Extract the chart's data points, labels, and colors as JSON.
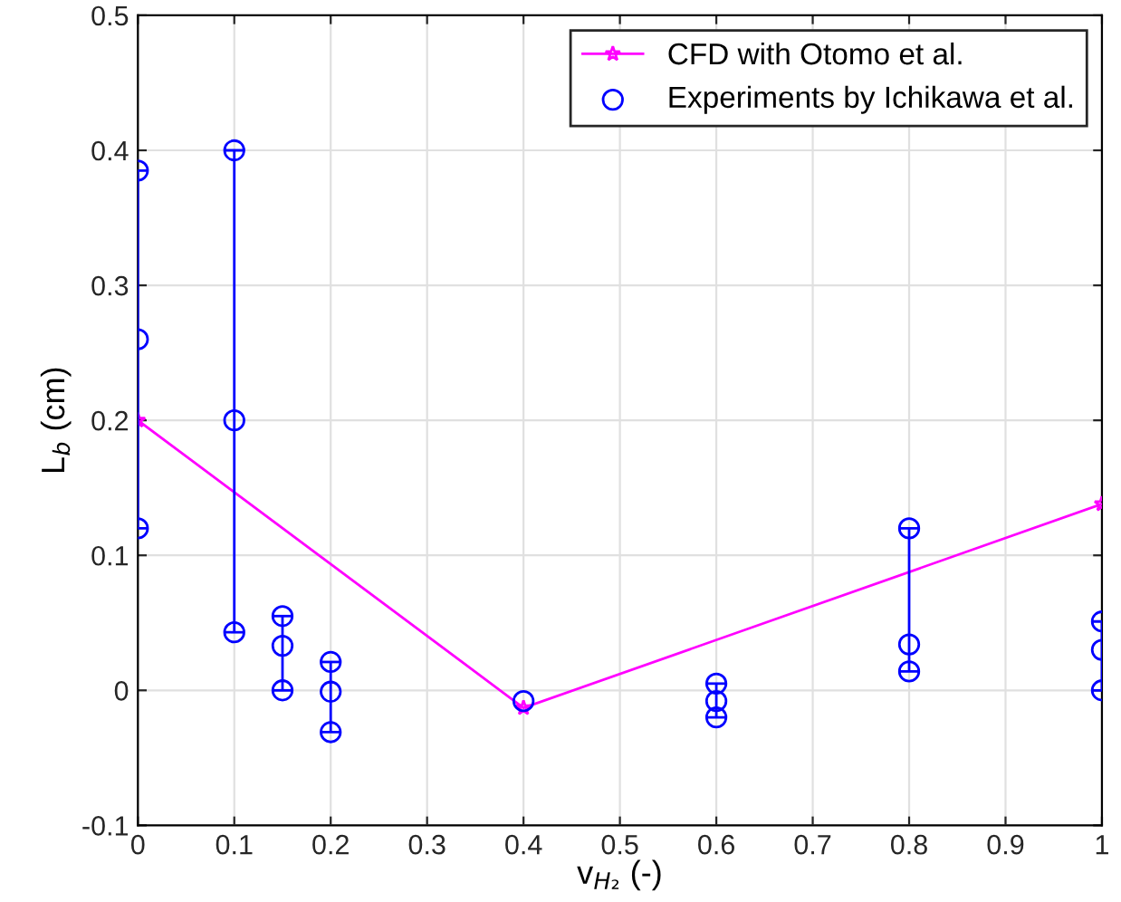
{
  "chart_data": {
    "type": "line",
    "xlabel": "v$_{H₂}$ (-)",
    "ylabel": "L$_{b}$ (cm)",
    "xlim": [
      0,
      1
    ],
    "ylim": [
      -0.1,
      0.5
    ],
    "xticks": [
      0,
      0.1,
      0.2,
      0.3,
      0.4,
      0.5,
      0.6,
      0.7,
      0.8,
      0.9,
      1
    ],
    "yticks": [
      -0.1,
      0,
      0.1,
      0.2,
      0.3,
      0.4,
      0.5
    ],
    "grid": true,
    "legend": "top right",
    "series": [
      {
        "name": "CFD with Otomo et al.",
        "color": "#ff00ff",
        "marker": "star",
        "x": [
          0,
          0.4,
          1
        ],
        "values": [
          0.2,
          -0.013,
          0.138
        ]
      },
      {
        "name": "Experiments by Ichikawa et al.",
        "type": "scatter",
        "color": "#0000ff",
        "marker": "circle",
        "x": [
          0,
          0,
          0,
          0.1,
          0.1,
          0.1,
          0.15,
          0.15,
          0.15,
          0.2,
          0.2,
          0.2,
          0.4,
          0.6,
          0.6,
          0.6,
          0.8,
          0.8,
          0.8,
          1,
          1,
          1
        ],
        "values": [
          0.385,
          0.26,
          0.12,
          0.4,
          0.2,
          0.043,
          0.055,
          0.033,
          0.0,
          0.021,
          -0.001,
          -0.031,
          -0.008,
          0.005,
          -0.008,
          -0.02,
          0.12,
          0.034,
          0.014,
          0.051,
          0.03,
          0.0
        ],
        "errors": [
          null,
          [
            0.12,
            0.385
          ],
          null,
          null,
          [
            0.043,
            0.4
          ],
          null,
          null,
          [
            0.0,
            0.055
          ],
          null,
          null,
          [
            -0.031,
            0.021
          ],
          null,
          null,
          null,
          [
            -0.02,
            0.005
          ],
          null,
          null,
          [
            0.014,
            0.12
          ],
          null,
          null,
          [
            0.0,
            0.051
          ],
          null
        ]
      }
    ]
  }
}
